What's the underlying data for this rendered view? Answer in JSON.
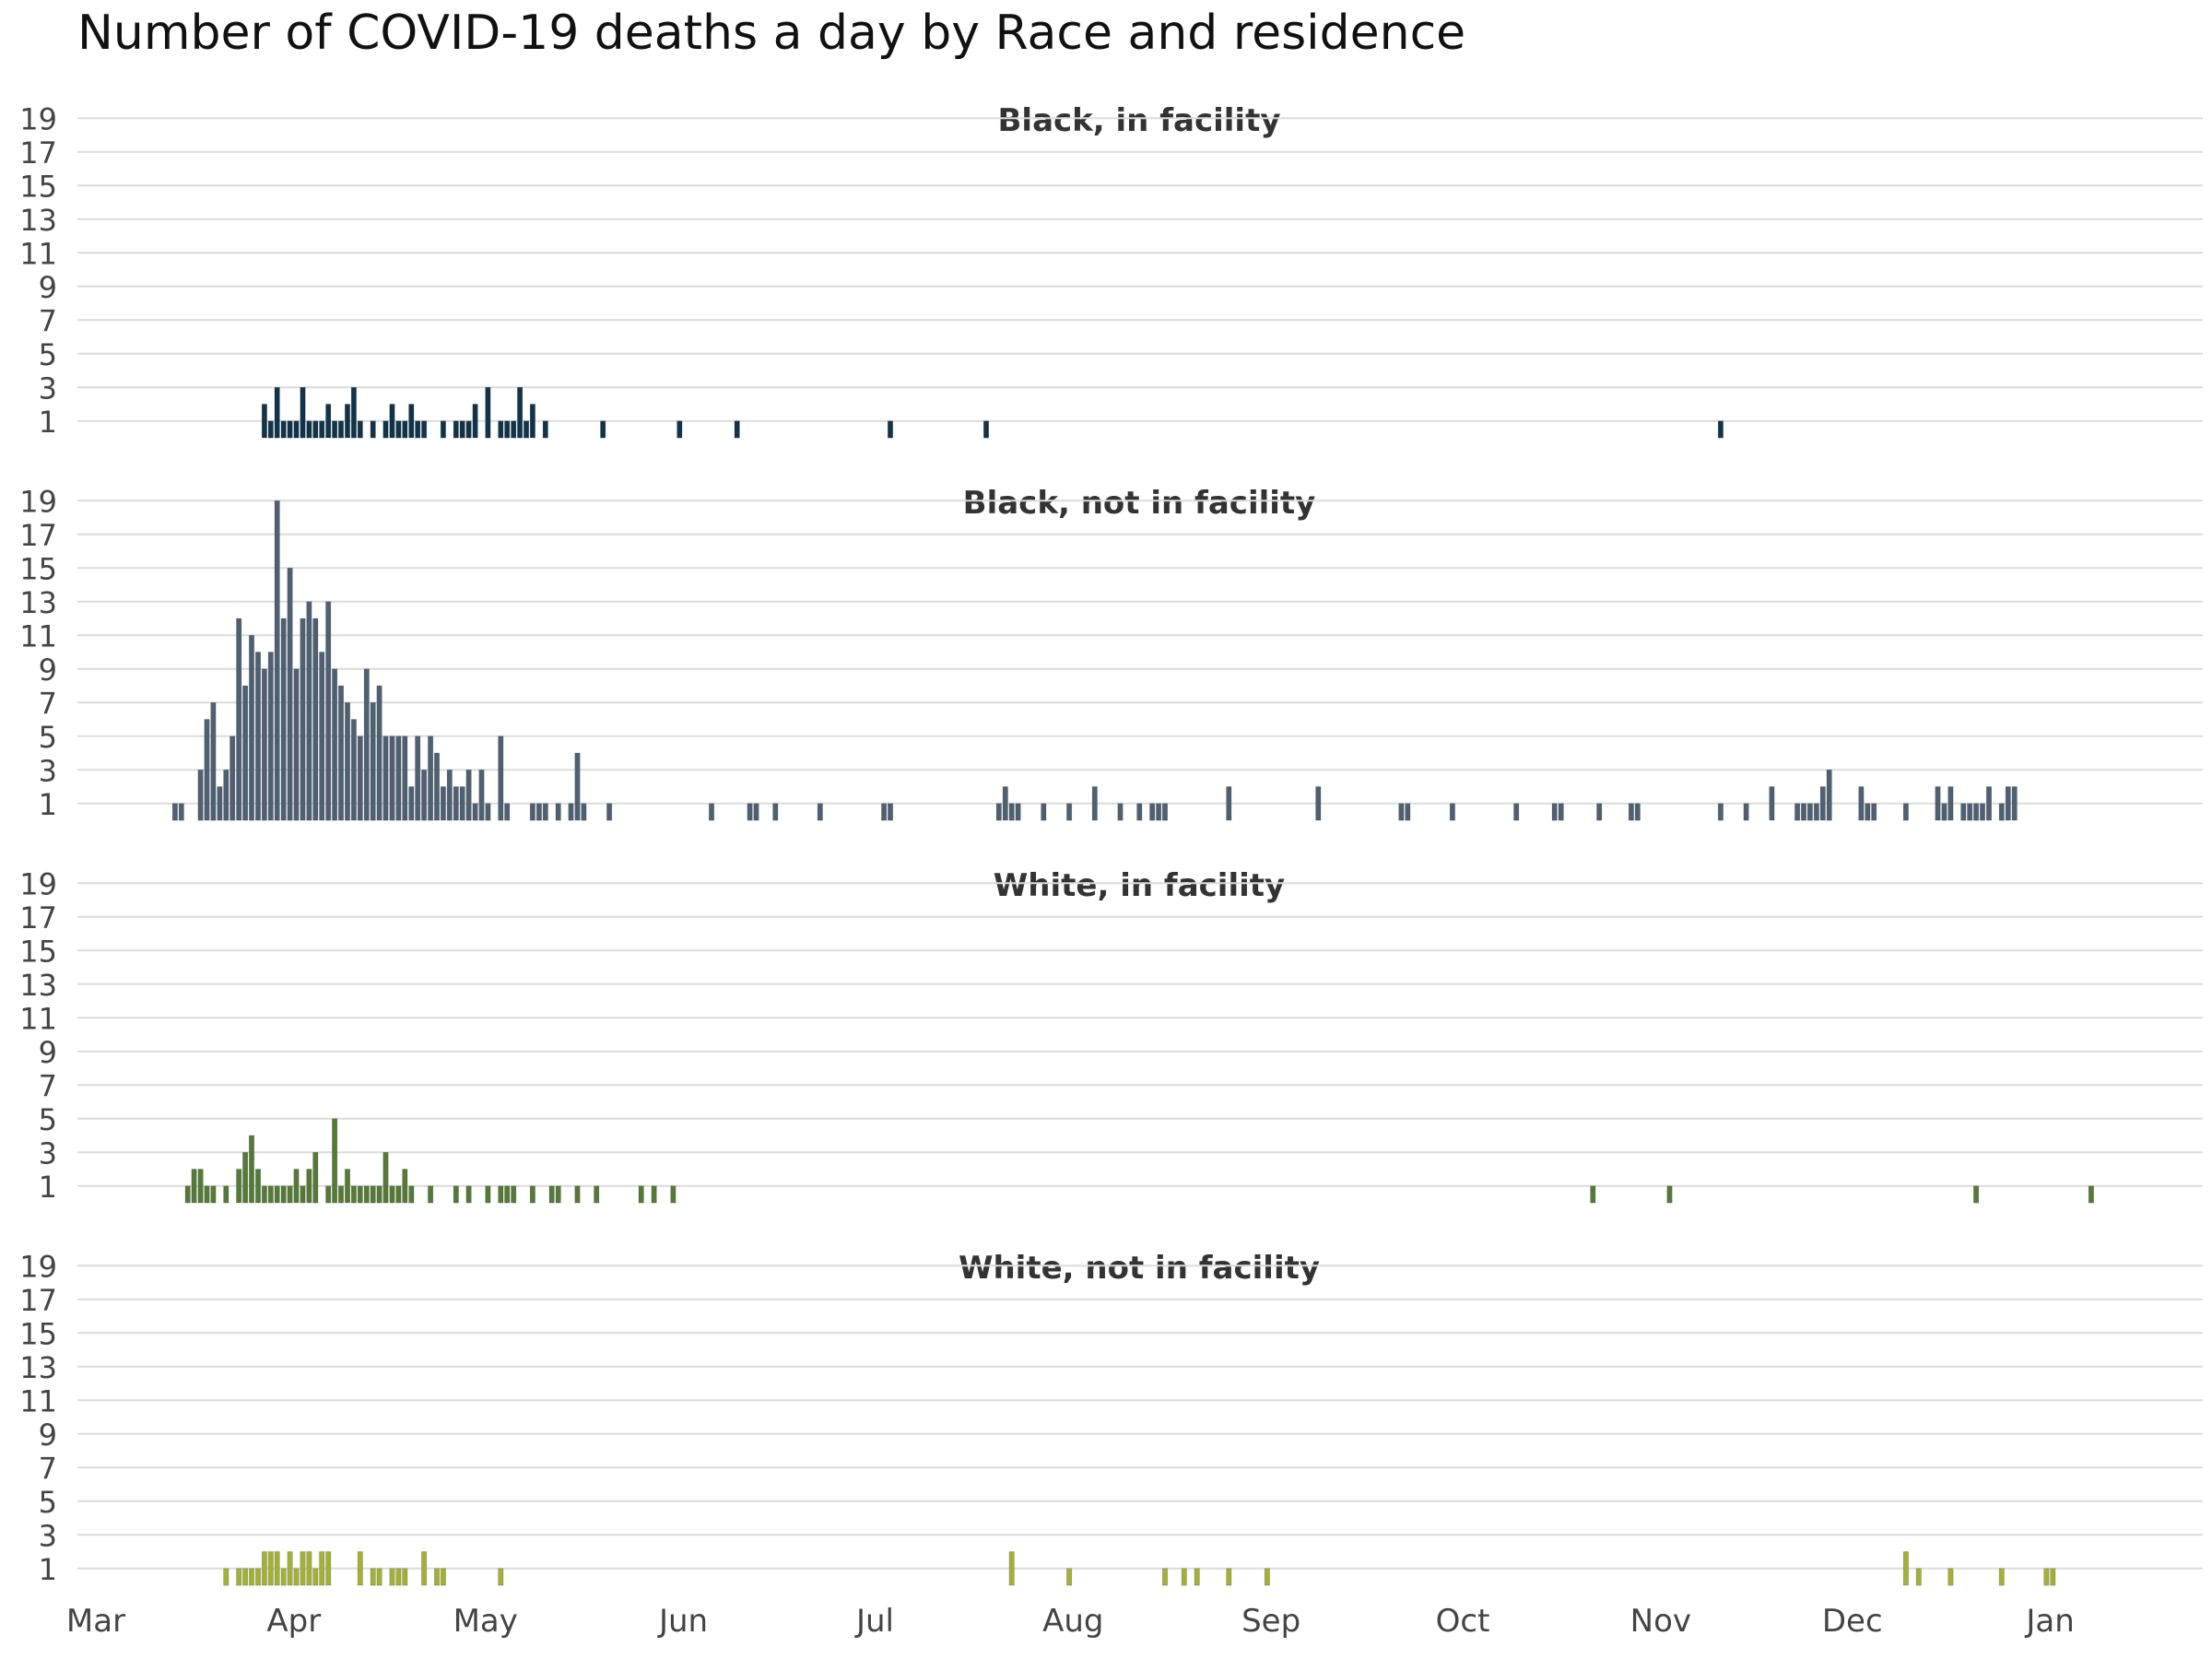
{
  "chart_data": {
    "type": "bar",
    "title": "Number of COVID-19 deaths a day by Race and residence",
    "xlabel": "",
    "ylabel": "",
    "ylim": [
      0,
      20
    ],
    "y_ticks": [
      1,
      3,
      5,
      7,
      9,
      11,
      13,
      15,
      17,
      19
    ],
    "x_ticks": [
      {
        "label": "Mar",
        "day": 0
      },
      {
        "label": "Apr",
        "day": 31
      },
      {
        "label": "May",
        "day": 61
      },
      {
        "label": "Jun",
        "day": 92
      },
      {
        "label": "Jul",
        "day": 122
      },
      {
        "label": "Aug",
        "day": 153
      },
      {
        "label": "Sep",
        "day": 184
      },
      {
        "label": "Oct",
        "day": 214
      },
      {
        "label": "Nov",
        "day": 245
      },
      {
        "label": "Dec",
        "day": 275
      },
      {
        "label": "Jan",
        "day": 306
      }
    ],
    "x_unit": "days since Mar 1",
    "series": [
      {
        "name": "Black, in facility",
        "color": "#11344a",
        "points": [
          [
            26,
            2
          ],
          [
            27,
            1
          ],
          [
            28,
            3
          ],
          [
            29,
            1
          ],
          [
            30,
            1
          ],
          [
            31,
            1
          ],
          [
            32,
            3
          ],
          [
            33,
            1
          ],
          [
            34,
            1
          ],
          [
            35,
            1
          ],
          [
            36,
            2
          ],
          [
            37,
            1
          ],
          [
            38,
            1
          ],
          [
            39,
            2
          ],
          [
            40,
            3
          ],
          [
            41,
            1
          ],
          [
            43,
            1
          ],
          [
            45,
            1
          ],
          [
            46,
            2
          ],
          [
            47,
            1
          ],
          [
            48,
            1
          ],
          [
            49,
            2
          ],
          [
            50,
            1
          ],
          [
            51,
            1
          ],
          [
            54,
            1
          ],
          [
            56,
            1
          ],
          [
            57,
            1
          ],
          [
            58,
            1
          ],
          [
            59,
            2
          ],
          [
            61,
            3
          ],
          [
            63,
            1
          ],
          [
            64,
            1
          ],
          [
            65,
            1
          ],
          [
            66,
            3
          ],
          [
            67,
            1
          ],
          [
            68,
            2
          ],
          [
            70,
            1
          ],
          [
            79,
            1
          ],
          [
            91,
            1
          ],
          [
            100,
            1
          ],
          [
            124,
            1
          ],
          [
            139,
            1
          ],
          [
            254,
            1
          ]
        ]
      },
      {
        "name": "Black, not in facility",
        "color": "#4f6073",
        "points": [
          [
            12,
            1
          ],
          [
            13,
            1
          ],
          [
            16,
            3
          ],
          [
            17,
            6
          ],
          [
            18,
            7
          ],
          [
            19,
            2
          ],
          [
            20,
            3
          ],
          [
            21,
            5
          ],
          [
            22,
            12
          ],
          [
            23,
            8
          ],
          [
            24,
            11
          ],
          [
            25,
            10
          ],
          [
            26,
            9
          ],
          [
            27,
            10
          ],
          [
            28,
            19
          ],
          [
            29,
            12
          ],
          [
            30,
            15
          ],
          [
            31,
            9
          ],
          [
            32,
            12
          ],
          [
            33,
            13
          ],
          [
            34,
            12
          ],
          [
            35,
            10
          ],
          [
            36,
            13
          ],
          [
            37,
            9
          ],
          [
            38,
            8
          ],
          [
            39,
            7
          ],
          [
            40,
            6
          ],
          [
            41,
            5
          ],
          [
            42,
            9
          ],
          [
            43,
            7
          ],
          [
            44,
            8
          ],
          [
            45,
            5
          ],
          [
            46,
            5
          ],
          [
            47,
            5
          ],
          [
            48,
            5
          ],
          [
            49,
            2
          ],
          [
            50,
            5
          ],
          [
            51,
            3
          ],
          [
            52,
            5
          ],
          [
            53,
            4
          ],
          [
            54,
            2
          ],
          [
            55,
            3
          ],
          [
            56,
            2
          ],
          [
            57,
            2
          ],
          [
            58,
            3
          ],
          [
            59,
            1
          ],
          [
            60,
            3
          ],
          [
            61,
            1
          ],
          [
            63,
            5
          ],
          [
            64,
            1
          ],
          [
            68,
            1
          ],
          [
            69,
            1
          ],
          [
            70,
            1
          ],
          [
            72,
            1
          ],
          [
            74,
            1
          ],
          [
            75,
            4
          ],
          [
            76,
            1
          ],
          [
            80,
            1
          ],
          [
            96,
            1
          ],
          [
            102,
            1
          ],
          [
            103,
            1
          ],
          [
            106,
            1
          ],
          [
            113,
            1
          ],
          [
            123,
            1
          ],
          [
            124,
            1
          ],
          [
            141,
            1
          ],
          [
            142,
            2
          ],
          [
            143,
            1
          ],
          [
            144,
            1
          ],
          [
            148,
            1
          ],
          [
            152,
            1
          ],
          [
            156,
            2
          ],
          [
            160,
            1
          ],
          [
            163,
            1
          ],
          [
            165,
            1
          ],
          [
            166,
            1
          ],
          [
            167,
            1
          ],
          [
            177,
            2
          ],
          [
            191,
            2
          ],
          [
            204,
            1
          ],
          [
            205,
            1
          ],
          [
            212,
            1
          ],
          [
            222,
            1
          ],
          [
            228,
            1
          ],
          [
            229,
            1
          ],
          [
            235,
            1
          ],
          [
            240,
            1
          ],
          [
            241,
            1
          ],
          [
            254,
            1
          ],
          [
            258,
            1
          ],
          [
            262,
            2
          ],
          [
            266,
            1
          ],
          [
            267,
            1
          ],
          [
            268,
            1
          ],
          [
            269,
            1
          ],
          [
            270,
            2
          ],
          [
            271,
            3
          ],
          [
            276,
            2
          ],
          [
            277,
            1
          ],
          [
            278,
            1
          ],
          [
            283,
            1
          ],
          [
            288,
            2
          ],
          [
            289,
            1
          ],
          [
            290,
            2
          ],
          [
            292,
            1
          ],
          [
            293,
            1
          ],
          [
            294,
            1
          ],
          [
            295,
            1
          ],
          [
            296,
            2
          ],
          [
            298,
            1
          ],
          [
            299,
            2
          ],
          [
            300,
            2
          ]
        ]
      },
      {
        "name": "White, in facility",
        "color": "#557a37",
        "points": [
          [
            14,
            1
          ],
          [
            15,
            2
          ],
          [
            16,
            2
          ],
          [
            17,
            1
          ],
          [
            18,
            1
          ],
          [
            20,
            1
          ],
          [
            22,
            2
          ],
          [
            23,
            3
          ],
          [
            24,
            4
          ],
          [
            25,
            2
          ],
          [
            26,
            1
          ],
          [
            27,
            1
          ],
          [
            28,
            1
          ],
          [
            29,
            1
          ],
          [
            30,
            1
          ],
          [
            31,
            2
          ],
          [
            32,
            1
          ],
          [
            33,
            2
          ],
          [
            34,
            3
          ],
          [
            36,
            1
          ],
          [
            37,
            5
          ],
          [
            38,
            1
          ],
          [
            39,
            2
          ],
          [
            40,
            1
          ],
          [
            41,
            1
          ],
          [
            42,
            1
          ],
          [
            43,
            1
          ],
          [
            44,
            1
          ],
          [
            45,
            3
          ],
          [
            46,
            1
          ],
          [
            47,
            1
          ],
          [
            48,
            2
          ],
          [
            49,
            1
          ],
          [
            52,
            1
          ],
          [
            56,
            1
          ],
          [
            58,
            1
          ],
          [
            61,
            1
          ],
          [
            63,
            1
          ],
          [
            64,
            1
          ],
          [
            65,
            1
          ],
          [
            68,
            1
          ],
          [
            71,
            1
          ],
          [
            72,
            1
          ],
          [
            75,
            1
          ],
          [
            78,
            1
          ],
          [
            85,
            1
          ],
          [
            87,
            1
          ],
          [
            90,
            1
          ],
          [
            234,
            1
          ],
          [
            246,
            1
          ],
          [
            294,
            1
          ],
          [
            312,
            1
          ]
        ]
      },
      {
        "name": "White, not in facility",
        "color": "#a3b03a",
        "points": [
          [
            20,
            1
          ],
          [
            22,
            1
          ],
          [
            23,
            1
          ],
          [
            24,
            1
          ],
          [
            25,
            1
          ],
          [
            26,
            2
          ],
          [
            27,
            2
          ],
          [
            28,
            2
          ],
          [
            29,
            1
          ],
          [
            30,
            2
          ],
          [
            31,
            1
          ],
          [
            32,
            2
          ],
          [
            33,
            2
          ],
          [
            34,
            1
          ],
          [
            35,
            2
          ],
          [
            36,
            2
          ],
          [
            41,
            2
          ],
          [
            43,
            1
          ],
          [
            44,
            1
          ],
          [
            46,
            1
          ],
          [
            47,
            1
          ],
          [
            48,
            1
          ],
          [
            51,
            2
          ],
          [
            53,
            1
          ],
          [
            54,
            1
          ],
          [
            63,
            1
          ],
          [
            143,
            2
          ],
          [
            152,
            1
          ],
          [
            167,
            1
          ],
          [
            170,
            1
          ],
          [
            172,
            1
          ],
          [
            177,
            1
          ],
          [
            183,
            1
          ],
          [
            283,
            2
          ],
          [
            285,
            1
          ],
          [
            290,
            1
          ],
          [
            298,
            1
          ],
          [
            305,
            1
          ],
          [
            306,
            1
          ]
        ]
      }
    ],
    "grid": true,
    "legend": "none (panel titles)"
  }
}
